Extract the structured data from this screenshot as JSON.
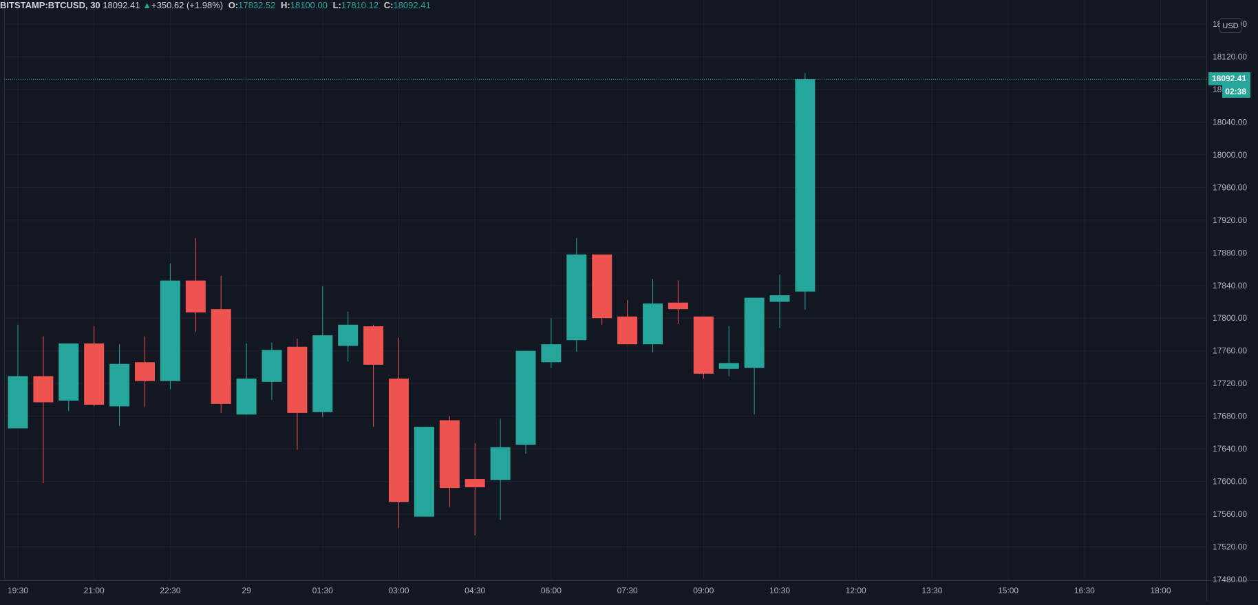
{
  "legend": {
    "symbol": "BITSTAMP:BTCUSD, 30",
    "last": "18092.41",
    "arrow": "▲",
    "change": "+350.62 (+1.98%)",
    "o_label": "O:",
    "o_value": "17832.52",
    "h_label": "H:",
    "h_value": "18100.00",
    "l_label": "L:",
    "l_value": "17810.12",
    "c_label": "C:",
    "c_value": "18092.41"
  },
  "price_axis": {
    "currency": "USD",
    "current_price": "18092.41",
    "countdown": "02:38"
  },
  "colors": {
    "background": "#131722",
    "up": "#26a69a",
    "down": "#ef5350",
    "grid": "#1e2230",
    "text": "#b2b5be"
  },
  "chart_data": {
    "type": "candlestick",
    "ylim": [
      17480,
      18160
    ],
    "y_ticks": [
      "17480.00",
      "17520.00",
      "17560.00",
      "17600.00",
      "17640.00",
      "17680.00",
      "17720.00",
      "17760.00",
      "17800.00",
      "17840.00",
      "17880.00",
      "17920.00",
      "17960.00",
      "18000.00",
      "18040.00",
      "18080.00",
      "18120.00",
      "18160.00"
    ],
    "x_ticks": [
      {
        "label": "19:30",
        "bar": 0
      },
      {
        "label": "21:00",
        "bar": 3
      },
      {
        "label": "22:30",
        "bar": 6
      },
      {
        "label": "29",
        "bar": 9
      },
      {
        "label": "01:30",
        "bar": 12
      },
      {
        "label": "03:00",
        "bar": 15
      },
      {
        "label": "04:30",
        "bar": 18
      },
      {
        "label": "06:00",
        "bar": 21
      },
      {
        "label": "07:30",
        "bar": 24
      },
      {
        "label": "09:00",
        "bar": 27
      },
      {
        "label": "10:30",
        "bar": 30
      },
      {
        "label": "12:00",
        "bar": 33
      },
      {
        "label": "13:30",
        "bar": 36
      },
      {
        "label": "15:00",
        "bar": 39
      },
      {
        "label": "16:30",
        "bar": 42
      },
      {
        "label": "18:00",
        "bar": 45
      }
    ],
    "candles": [
      {
        "o": 17665,
        "h": 17792,
        "l": 17665,
        "c": 17729
      },
      {
        "o": 17729,
        "h": 17778,
        "l": 17598,
        "c": 17697
      },
      {
        "o": 17699,
        "h": 17769,
        "l": 17686,
        "c": 17769
      },
      {
        "o": 17769,
        "h": 17790,
        "l": 17692,
        "c": 17694
      },
      {
        "o": 17692,
        "h": 17768,
        "l": 17668,
        "c": 17744
      },
      {
        "o": 17746,
        "h": 17778,
        "l": 17691,
        "c": 17723
      },
      {
        "o": 17723,
        "h": 17867,
        "l": 17713,
        "c": 17846
      },
      {
        "o": 17846,
        "h": 17898,
        "l": 17783,
        "c": 17807
      },
      {
        "o": 17811,
        "h": 17852,
        "l": 17684,
        "c": 17695
      },
      {
        "o": 17682,
        "h": 17769,
        "l": 17682,
        "c": 17726
      },
      {
        "o": 17722,
        "h": 17770,
        "l": 17700,
        "c": 17761
      },
      {
        "o": 17765,
        "h": 17775,
        "l": 17639,
        "c": 17684
      },
      {
        "o": 17685,
        "h": 17839,
        "l": 17679,
        "c": 17779
      },
      {
        "o": 17766,
        "h": 17808,
        "l": 17747,
        "c": 17792
      },
      {
        "o": 17790,
        "h": 17792,
        "l": 17667,
        "c": 17743
      },
      {
        "o": 17726,
        "h": 17776,
        "l": 17543,
        "c": 17575
      },
      {
        "o": 17557,
        "h": 17667,
        "l": 17557,
        "c": 17667
      },
      {
        "o": 17675,
        "h": 17680,
        "l": 17569,
        "c": 17592
      },
      {
        "o": 17603,
        "h": 17647,
        "l": 17534,
        "c": 17593
      },
      {
        "o": 17602,
        "h": 17677,
        "l": 17553,
        "c": 17642
      },
      {
        "o": 17645,
        "h": 17760,
        "l": 17634,
        "c": 17760
      },
      {
        "o": 17746,
        "h": 17800,
        "l": 17739,
        "c": 17768
      },
      {
        "o": 17773,
        "h": 17898,
        "l": 17759,
        "c": 17878
      },
      {
        "o": 17878,
        "h": 17878,
        "l": 17792,
        "c": 17800
      },
      {
        "o": 17802,
        "h": 17822,
        "l": 17768,
        "c": 17768
      },
      {
        "o": 17768,
        "h": 17848,
        "l": 17758,
        "c": 17818
      },
      {
        "o": 17819,
        "h": 17846,
        "l": 17793,
        "c": 17811
      },
      {
        "o": 17802,
        "h": 17802,
        "l": 17726,
        "c": 17732
      },
      {
        "o": 17738,
        "h": 17790,
        "l": 17729,
        "c": 17745
      },
      {
        "o": 17739,
        "h": 17825,
        "l": 17682,
        "c": 17825
      },
      {
        "o": 17820,
        "h": 17853,
        "l": 17788,
        "c": 17828
      },
      {
        "o": 17832.52,
        "h": 18100,
        "l": 17810.12,
        "c": 18092.41
      }
    ]
  }
}
